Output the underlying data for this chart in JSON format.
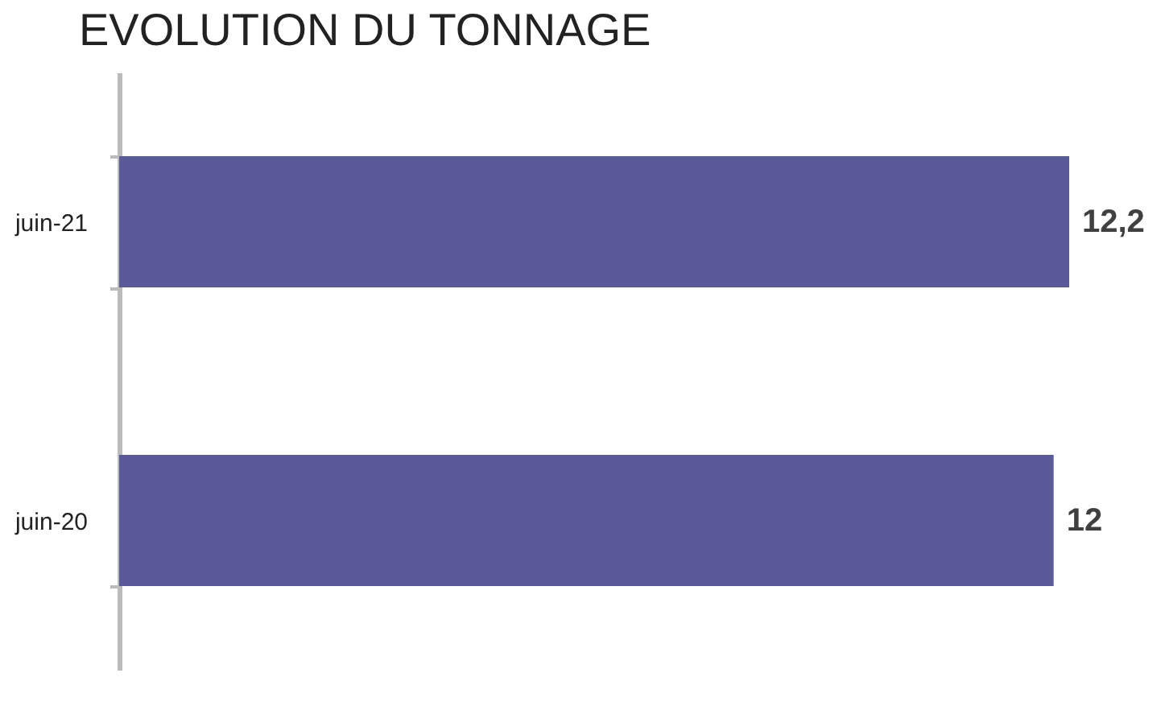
{
  "chart_data": {
    "type": "bar",
    "orientation": "horizontal",
    "title": "EVOLUTION DU TONNAGE",
    "categories": [
      "juin-21",
      "juin-20"
    ],
    "series": [
      {
        "color": "#5a5a98",
        "values": [
          12.2,
          12
        ],
        "value_labels": [
          "12,2",
          "12"
        ]
      }
    ]
  }
}
